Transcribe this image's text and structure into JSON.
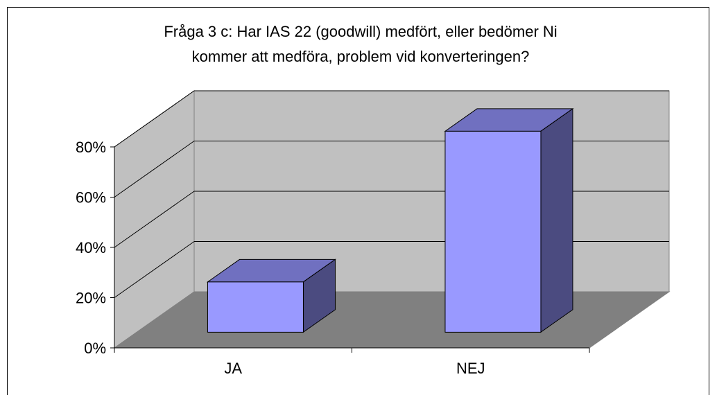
{
  "chart_data": {
    "type": "bar3d",
    "title": [
      "Fråga 3 c: Har IAS 22 (goodwill) medfört, eller bedömer Ni",
      "kommer att medföra, problem vid konverteringen?"
    ],
    "categories": [
      "JA",
      "NEJ"
    ],
    "values": [
      20,
      80
    ],
    "color": "#9999ff",
    "ylim": [
      0,
      80
    ],
    "yticks": [
      {
        "value": 0,
        "label": "0%"
      },
      {
        "value": 20,
        "label": "20%"
      },
      {
        "value": 40,
        "label": "40%"
      },
      {
        "value": 60,
        "label": "60%"
      },
      {
        "value": 80,
        "label": "80%"
      }
    ],
    "grid": true
  }
}
